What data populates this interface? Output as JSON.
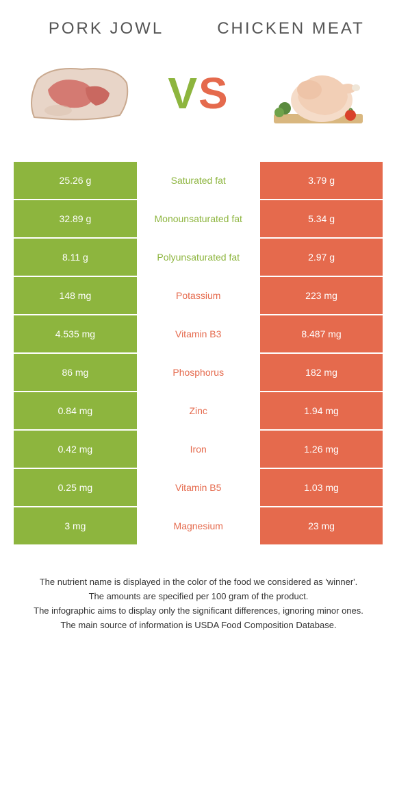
{
  "colors": {
    "left": "#8db53e",
    "right": "#e56a4d",
    "leftText": "#ffffff",
    "rightText": "#ffffff"
  },
  "header": {
    "leftTitle": "PORK JOWL",
    "rightTitle": "CHICKEN MEAT",
    "vs": {
      "v": "V",
      "s": "S"
    }
  },
  "rows": [
    {
      "left": "25.26 g",
      "label": "Saturated fat",
      "right": "3.79 g",
      "winner": "left"
    },
    {
      "left": "32.89 g",
      "label": "Monounsaturated fat",
      "right": "5.34 g",
      "winner": "left"
    },
    {
      "left": "8.11 g",
      "label": "Polyunsaturated fat",
      "right": "2.97 g",
      "winner": "left"
    },
    {
      "left": "148 mg",
      "label": "Potassium",
      "right": "223 mg",
      "winner": "right"
    },
    {
      "left": "4.535 mg",
      "label": "Vitamin B3",
      "right": "8.487 mg",
      "winner": "right"
    },
    {
      "left": "86 mg",
      "label": "Phosphorus",
      "right": "182 mg",
      "winner": "right"
    },
    {
      "left": "0.84 mg",
      "label": "Zinc",
      "right": "1.94 mg",
      "winner": "right"
    },
    {
      "left": "0.42 mg",
      "label": "Iron",
      "right": "1.26 mg",
      "winner": "right"
    },
    {
      "left": "0.25 mg",
      "label": "Vitamin B5",
      "right": "1.03 mg",
      "winner": "right"
    },
    {
      "left": "3 mg",
      "label": "Magnesium",
      "right": "23 mg",
      "winner": "right"
    }
  ],
  "footnotes": [
    "The nutrient name is displayed in the color of the food we considered as 'winner'.",
    "The amounts are specified per 100 gram of the product.",
    "The infographic aims to display only the significant differences, ignoring minor ones.",
    "The main source of information is USDA Food Composition Database."
  ]
}
